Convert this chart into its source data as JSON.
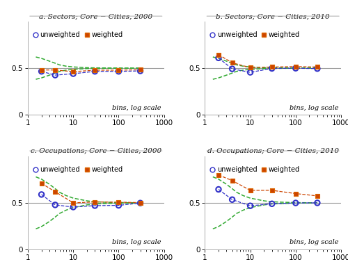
{
  "panels": [
    {
      "title": "a. Sectors; Core − Cities, 2000",
      "x_unweighted": [
        2,
        4,
        10,
        30,
        100,
        300
      ],
      "y_unweighted": [
        0.465,
        0.425,
        0.44,
        0.465,
        0.465,
        0.47
      ],
      "x_weighted": [
        2,
        4,
        10,
        30,
        100,
        300
      ],
      "y_weighted": [
        0.48,
        0.48,
        0.462,
        0.478,
        0.478,
        0.482
      ],
      "ci_upper_x": [
        1.5,
        2,
        3,
        4,
        5,
        7,
        10,
        20,
        30,
        50,
        100,
        200,
        300
      ],
      "ci_upper_y": [
        0.62,
        0.605,
        0.575,
        0.553,
        0.535,
        0.521,
        0.513,
        0.505,
        0.503,
        0.502,
        0.501,
        0.5,
        0.5
      ],
      "ci_lower_x": [
        1.5,
        2,
        3,
        4,
        5,
        7,
        10,
        20,
        30,
        50,
        100,
        200,
        300
      ],
      "ci_lower_y": [
        0.38,
        0.395,
        0.425,
        0.447,
        0.465,
        0.479,
        0.487,
        0.495,
        0.497,
        0.498,
        0.499,
        0.5,
        0.5
      ]
    },
    {
      "title": "b. Sectors; Core − Cities, 2010",
      "x_unweighted": [
        2,
        4,
        10,
        30,
        100,
        300
      ],
      "y_unweighted": [
        0.61,
        0.492,
        0.455,
        0.497,
        0.499,
        0.495
      ],
      "x_weighted": [
        2,
        4,
        10,
        30,
        100,
        300
      ],
      "y_weighted": [
        0.645,
        0.558,
        0.505,
        0.512,
        0.517,
        0.512
      ],
      "ci_upper_x": [
        1.5,
        2,
        3,
        4,
        5,
        7,
        10,
        20,
        30,
        50,
        100,
        200,
        300
      ],
      "ci_upper_y": [
        0.62,
        0.605,
        0.575,
        0.553,
        0.535,
        0.521,
        0.513,
        0.505,
        0.503,
        0.502,
        0.501,
        0.5,
        0.5
      ],
      "ci_lower_x": [
        1.5,
        2,
        3,
        4,
        5,
        7,
        10,
        20,
        30,
        50,
        100,
        200,
        300
      ],
      "ci_lower_y": [
        0.38,
        0.395,
        0.425,
        0.447,
        0.465,
        0.479,
        0.487,
        0.495,
        0.497,
        0.498,
        0.499,
        0.5,
        0.5
      ]
    },
    {
      "title": "c. Occupations; Core − Cities, 2000",
      "x_unweighted": [
        2,
        4,
        10,
        30,
        100,
        300
      ],
      "y_unweighted": [
        0.59,
        0.478,
        0.455,
        0.47,
        0.473,
        0.498
      ],
      "x_weighted": [
        2,
        4,
        10,
        30,
        100,
        300
      ],
      "y_weighted": [
        0.71,
        0.62,
        0.5,
        0.51,
        0.507,
        0.503
      ],
      "ci_upper_x": [
        1.5,
        2,
        3,
        4,
        5,
        7,
        10,
        20,
        30,
        50,
        100,
        200,
        300
      ],
      "ci_upper_y": [
        0.78,
        0.755,
        0.7,
        0.653,
        0.614,
        0.578,
        0.551,
        0.522,
        0.512,
        0.507,
        0.503,
        0.501,
        0.5
      ],
      "ci_lower_x": [
        1.5,
        2,
        3,
        4,
        5,
        7,
        10,
        20,
        30,
        50,
        100,
        200,
        300
      ],
      "ci_lower_y": [
        0.22,
        0.245,
        0.3,
        0.347,
        0.386,
        0.422,
        0.449,
        0.478,
        0.488,
        0.493,
        0.497,
        0.499,
        0.5
      ]
    },
    {
      "title": "d. Occupations; Core − Cities, 2010",
      "x_unweighted": [
        2,
        4,
        10,
        30,
        100,
        300
      ],
      "y_unweighted": [
        0.645,
        0.535,
        0.468,
        0.49,
        0.499,
        0.5
      ],
      "x_weighted": [
        2,
        4,
        10,
        30,
        100,
        300
      ],
      "y_weighted": [
        0.8,
        0.74,
        0.635,
        0.635,
        0.6,
        0.575
      ],
      "ci_upper_x": [
        1.5,
        2,
        3,
        4,
        5,
        7,
        10,
        20,
        30,
        50,
        100,
        200,
        300
      ],
      "ci_upper_y": [
        0.78,
        0.755,
        0.7,
        0.653,
        0.614,
        0.578,
        0.551,
        0.522,
        0.512,
        0.507,
        0.503,
        0.501,
        0.5
      ],
      "ci_lower_x": [
        1.5,
        2,
        3,
        4,
        5,
        7,
        10,
        20,
        30,
        50,
        100,
        200,
        300
      ],
      "ci_lower_y": [
        0.22,
        0.245,
        0.3,
        0.347,
        0.386,
        0.422,
        0.449,
        0.478,
        0.488,
        0.493,
        0.497,
        0.499,
        0.5
      ]
    }
  ],
  "color_unweighted": "#3232c8",
  "color_weighted": "#cc4400",
  "color_ci": "#33aa33",
  "xlabel": "bins, log scale",
  "ylim": [
    0,
    1
  ],
  "xlim": [
    1,
    1000
  ],
  "yticks": [
    0,
    0.5
  ],
  "xticks": [
    1,
    10,
    100,
    1000
  ],
  "hline_y": 0.5,
  "hline_color": "#999999",
  "background_color": "#ffffff",
  "title_fontsize": 7.5,
  "label_fontsize": 7.0,
  "tick_fontsize": 7.5,
  "legend_fontsize": 7.0
}
